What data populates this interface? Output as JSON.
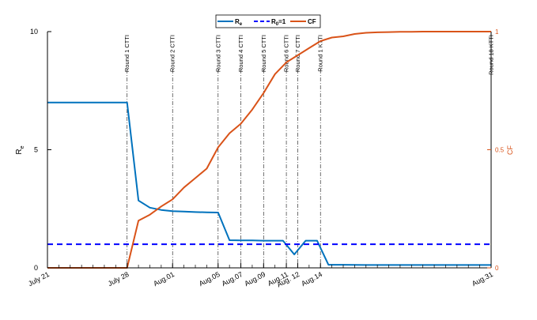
{
  "chart_data": {
    "type": "line",
    "ylabel_left": "Re",
    "ylabel_left_sub": "e",
    "ylabel_right": "CF",
    "xlim": [
      0,
      39
    ],
    "ylim_left": [
      0,
      10
    ],
    "ylim_right": [
      0,
      1
    ],
    "left_ticks": [
      0,
      5,
      10
    ],
    "right_ticks": [
      0,
      0.5,
      1
    ],
    "left_tick_labels": [
      "0",
      "5",
      "10"
    ],
    "right_tick_labels": [
      "0",
      "0.5",
      "1"
    ],
    "x_ticks": [
      {
        "x": 0,
        "label": "July 21"
      },
      {
        "x": 7,
        "label": "July 28"
      },
      {
        "x": 11,
        "label": "Aug.01"
      },
      {
        "x": 15,
        "label": "Aug.05"
      },
      {
        "x": 17,
        "label": "Aug.07"
      },
      {
        "x": 19,
        "label": "Aug.09"
      },
      {
        "x": 21,
        "label": "Aug.11"
      },
      {
        "x": 22,
        "label": "Aug. 12"
      },
      {
        "x": 24,
        "label": "Aug.14"
      },
      {
        "x": 39,
        "label": "Aug.31"
      }
    ],
    "vlines": [
      {
        "x": 7,
        "label": "Round 1 CTTI"
      },
      {
        "x": 11,
        "label": "Round 2 CTTI"
      },
      {
        "x": 15,
        "label": "Round 3 CTTI"
      },
      {
        "x": 17,
        "label": "Round 4 CTTI"
      },
      {
        "x": 19,
        "label": "Round 5 CTTI"
      },
      {
        "x": 21,
        "label": "Round 6 CTTI"
      },
      {
        "x": 22,
        "label": "Round 7 CTTI"
      },
      {
        "x": 24,
        "label": "Round 1 KTTI"
      },
      {
        "x": 39,
        "label": "Round 18 KTTI"
      }
    ],
    "legend": {
      "position": "top-center",
      "entries": [
        {
          "label": "R",
          "sub": "e"
        },
        {
          "label": "R",
          "sub": "0",
          "suffix": "=1"
        },
        {
          "label": "CF"
        }
      ]
    },
    "series": [
      {
        "name": "Re",
        "axis": "left",
        "color": "#0072BD",
        "style": "solid",
        "x": [
          0,
          7,
          8,
          9,
          10,
          11,
          12,
          13,
          14,
          15,
          16,
          17,
          18,
          19,
          20,
          20.7,
          21.7,
          22.7,
          23.7,
          24.7,
          26,
          28,
          30,
          32,
          34,
          36,
          38,
          39
        ],
        "y": [
          7.0,
          7.0,
          2.85,
          2.55,
          2.45,
          2.4,
          2.38,
          2.36,
          2.35,
          2.34,
          1.17,
          1.16,
          1.16,
          1.15,
          1.15,
          1.15,
          0.57,
          1.15,
          1.15,
          0.13,
          0.13,
          0.12,
          0.12,
          0.12,
          0.12,
          0.12,
          0.12,
          0.12
        ]
      },
      {
        "name": "R0=1",
        "axis": "left",
        "color": "#0000ff",
        "style": "dashed",
        "x": [
          0,
          39
        ],
        "y": [
          1,
          1
        ]
      },
      {
        "name": "CF",
        "axis": "right",
        "color": "#D95319",
        "style": "solid",
        "x": [
          0,
          7,
          8,
          9,
          10,
          11,
          12,
          13,
          14,
          15,
          16,
          17,
          18,
          19,
          20,
          21,
          22,
          23,
          24,
          25,
          26,
          27,
          28,
          29,
          30,
          31,
          32,
          33,
          34,
          35,
          36,
          37,
          38,
          39
        ],
        "y": [
          0,
          0,
          0.2,
          0.225,
          0.26,
          0.29,
          0.34,
          0.38,
          0.42,
          0.51,
          0.57,
          0.61,
          0.67,
          0.74,
          0.82,
          0.87,
          0.9,
          0.93,
          0.96,
          0.975,
          0.98,
          0.99,
          0.995,
          0.997,
          0.998,
          0.999,
          0.999,
          1.0,
          1.0,
          1.0,
          1.0,
          1.0,
          1.0,
          1.0
        ]
      }
    ]
  }
}
